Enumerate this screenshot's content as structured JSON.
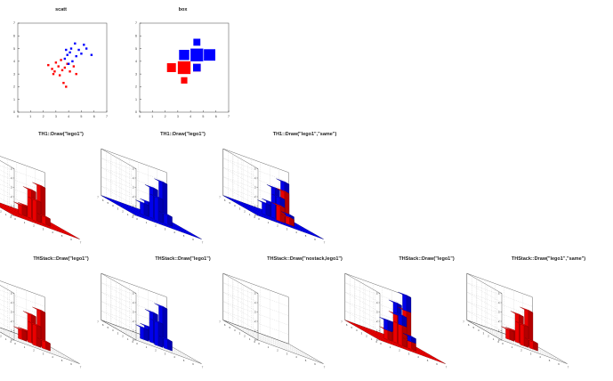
{
  "colors": {
    "red": "#ff0000",
    "blue": "#0000ff",
    "frame": "#444444",
    "grid": "#c8c8c8"
  },
  "chart_data": [
    {
      "type": "scatter",
      "title": "scatt",
      "xlim": [
        0,
        7
      ],
      "ylim": [
        0,
        7
      ],
      "xticks": [
        "0",
        "1",
        "2",
        "3",
        "4",
        "5",
        "6",
        "7"
      ],
      "yticks": [
        "0",
        "1",
        "2",
        "3",
        "4",
        "5",
        "6",
        "7"
      ],
      "series": [
        {
          "color": "#ff0000",
          "points": [
            [
              2.4,
              3.7
            ],
            [
              2.7,
              3.4
            ],
            [
              2.9,
              3.2
            ],
            [
              3.0,
              3.9
            ],
            [
              3.2,
              3.6
            ],
            [
              3.3,
              2.9
            ],
            [
              3.5,
              3.3
            ],
            [
              3.6,
              2.3
            ],
            [
              3.7,
              3.5
            ],
            [
              3.9,
              3.8
            ],
            [
              3.8,
              2.0
            ],
            [
              4.1,
              3.2
            ],
            [
              4.4,
              3.6
            ],
            [
              4.6,
              3.0
            ],
            [
              3.4,
              4.1
            ],
            [
              2.8,
              3.0
            ]
          ]
        },
        {
          "color": "#0000ff",
          "points": [
            [
              3.7,
              4.2
            ],
            [
              3.9,
              4.5
            ],
            [
              4.1,
              4.7
            ],
            [
              4.3,
              4.0
            ],
            [
              4.5,
              5.4
            ],
            [
              4.8,
              4.9
            ],
            [
              5.0,
              4.6
            ],
            [
              5.4,
              5.0
            ],
            [
              5.8,
              4.5
            ],
            [
              4.2,
              5.0
            ],
            [
              4.6,
              4.4
            ],
            [
              4.0,
              3.8
            ],
            [
              5.2,
              5.3
            ],
            [
              3.8,
              4.9
            ]
          ]
        }
      ]
    },
    {
      "type": "heatmap",
      "title": "box",
      "xlim": [
        0,
        7
      ],
      "ylim": [
        0,
        7
      ],
      "xticks": [
        "0",
        "1",
        "2",
        "3",
        "4",
        "5",
        "6",
        "7"
      ],
      "yticks": [
        "0",
        "1",
        "2",
        "3",
        "4",
        "5",
        "6",
        "7"
      ],
      "boxes": [
        {
          "color": "#ff0000",
          "cells": [
            [
              2,
              3,
              0.7
            ],
            [
              3,
              3,
              1.0
            ],
            [
              4,
              3,
              0.6
            ],
            [
              3,
              2,
              0.5
            ]
          ]
        },
        {
          "color": "#0000ff",
          "cells": [
            [
              3,
              4,
              0.8
            ],
            [
              4,
              4,
              1.0
            ],
            [
              5,
              4,
              0.9
            ],
            [
              4,
              5,
              0.55
            ],
            [
              4,
              3,
              0.6
            ]
          ]
        }
      ]
    },
    {
      "type": "bar",
      "title": "TH1::Draw(\"lego1\")",
      "mode": "single",
      "floor": true,
      "layers": [
        {
          "color": "#ff0000",
          "heights": [
            [
              0,
              0,
              0,
              0,
              0
            ],
            [
              0,
              0,
              1.0,
              0,
              0
            ],
            [
              0,
              2.2,
              3.0,
              1.0,
              0
            ],
            [
              0,
              0.8,
              3.8,
              1.2,
              0
            ],
            [
              0,
              0,
              0,
              0,
              0
            ]
          ]
        }
      ]
    },
    {
      "type": "bar",
      "title": "TH1::Draw(\"lego1\")",
      "mode": "single",
      "floor": true,
      "layers": [
        {
          "color": "#0000ff",
          "heights": [
            [
              0,
              0,
              0,
              0,
              0
            ],
            [
              0,
              0,
              1.2,
              0,
              0
            ],
            [
              0,
              2.5,
              3.2,
              1.4,
              0
            ],
            [
              0,
              1.0,
              4.2,
              1.8,
              0
            ],
            [
              0,
              0,
              0,
              0,
              0
            ]
          ]
        }
      ]
    },
    {
      "type": "bar",
      "title": "TH1::Draw(\"lego1\",\"same\")",
      "mode": "single",
      "floor": true,
      "layers": [
        {
          "color": "#0000ff",
          "heights": [
            [
              0,
              0,
              0,
              0,
              0
            ],
            [
              0,
              0,
              1.2,
              0,
              0
            ],
            [
              0,
              2.5,
              3.2,
              1.4,
              0
            ],
            [
              0,
              1.0,
              4.2,
              1.8,
              0
            ],
            [
              0,
              0,
              0,
              0,
              0
            ]
          ]
        },
        {
          "color": "#ff0000",
          "heights": [
            [
              0,
              0,
              0,
              0,
              0
            ],
            [
              0,
              0,
              0,
              0,
              0
            ],
            [
              0,
              1.6,
              0,
              0,
              0
            ],
            [
              0,
              0.7,
              3.2,
              0,
              0
            ],
            [
              0,
              0,
              0,
              0,
              0
            ]
          ]
        }
      ]
    },
    {
      "type": "bar",
      "title": "THStack::Draw(\"lego1\")",
      "mode": "single",
      "floor": false,
      "layers": [
        {
          "color": "#ff0000",
          "heights": [
            [
              0,
              0,
              0,
              0,
              0
            ],
            [
              0,
              0,
              1.0,
              0,
              0
            ],
            [
              0,
              2.2,
              3.0,
              1.0,
              0
            ],
            [
              0,
              0.8,
              3.8,
              1.2,
              0
            ],
            [
              0,
              0,
              0,
              0,
              0
            ]
          ]
        }
      ]
    },
    {
      "type": "bar",
      "title": "THStack::Draw(\"lego1\")",
      "mode": "single",
      "floor": false,
      "layers": [
        {
          "color": "#0000ff",
          "heights": [
            [
              0,
              0,
              0,
              0,
              0
            ],
            [
              0,
              0,
              1.2,
              0,
              0
            ],
            [
              0,
              2.5,
              3.2,
              1.4,
              0
            ],
            [
              0,
              1.0,
              4.2,
              1.8,
              0
            ],
            [
              0,
              0,
              0,
              0,
              0
            ]
          ]
        }
      ]
    },
    {
      "type": "bar",
      "title": "THStack::Draw(\"nostack,lego1\")",
      "mode": "empty",
      "floor": false,
      "layers": []
    },
    {
      "type": "bar",
      "title": "THStack::Draw(\"lego1\")",
      "mode": "stack",
      "floor": true,
      "layers": [
        {
          "color": "#ff0000",
          "heights": [
            [
              0,
              0,
              0,
              0,
              0
            ],
            [
              0,
              0,
              1.0,
              0,
              0
            ],
            [
              0,
              2.2,
              3.0,
              1.0,
              0
            ],
            [
              0,
              0.8,
              3.8,
              1.2,
              0
            ],
            [
              0,
              0,
              0,
              0,
              0
            ]
          ]
        },
        {
          "color": "#0000ff",
          "heights": [
            [
              0,
              0,
              0,
              0,
              0
            ],
            [
              0,
              0,
              1.0,
              0,
              0
            ],
            [
              0,
              1.0,
              1.2,
              0.9,
              0
            ],
            [
              0,
              0.5,
              1.6,
              1.2,
              0
            ],
            [
              0,
              0,
              0,
              0,
              0
            ]
          ]
        }
      ]
    },
    {
      "type": "bar",
      "title": "THStack::Draw(\"lego1\",\"same\")",
      "mode": "single",
      "floor": false,
      "layers": [
        {
          "color": "#ff0000",
          "heights": [
            [
              0,
              0,
              0,
              0,
              0
            ],
            [
              0,
              0,
              1.0,
              0,
              0
            ],
            [
              0,
              2.2,
              3.0,
              1.0,
              0
            ],
            [
              0,
              0.8,
              3.8,
              1.2,
              0
            ],
            [
              0,
              0,
              0,
              0,
              0
            ]
          ]
        }
      ]
    }
  ]
}
